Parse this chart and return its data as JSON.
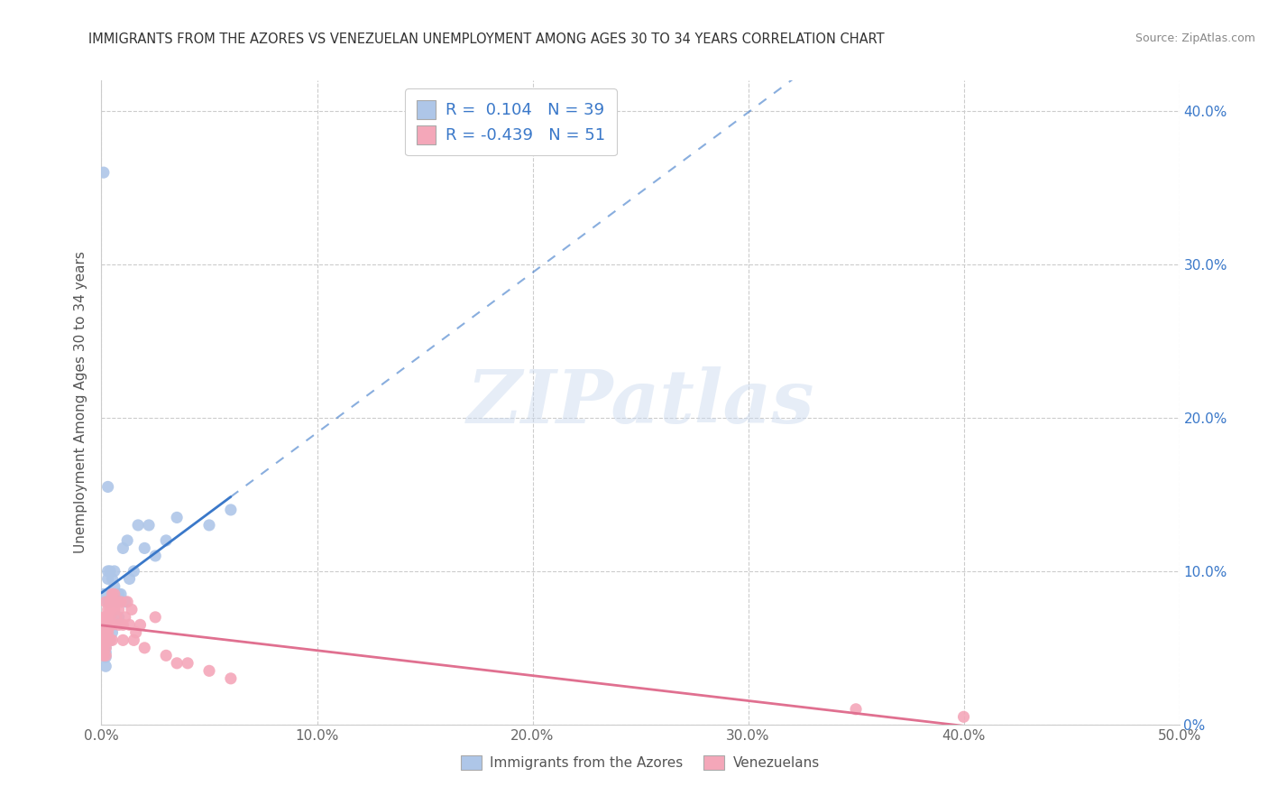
{
  "title": "IMMIGRANTS FROM THE AZORES VS VENEZUELAN UNEMPLOYMENT AMONG AGES 30 TO 34 YEARS CORRELATION CHART",
  "source": "Source: ZipAtlas.com",
  "ylabel": "Unemployment Among Ages 30 to 34 years",
  "xlim": [
    0.0,
    0.5
  ],
  "ylim": [
    0.0,
    0.42
  ],
  "xtick_vals": [
    0.0,
    0.1,
    0.2,
    0.3,
    0.4,
    0.5
  ],
  "xtick_labels": [
    "0.0%",
    "10.0%",
    "20.0%",
    "30.0%",
    "40.0%",
    "50.0%"
  ],
  "ytick_vals": [
    0.0,
    0.1,
    0.2,
    0.3,
    0.4
  ],
  "ytick_labels_right": [
    "0%",
    "10.0%",
    "20.0%",
    "30.0%",
    "40.0%"
  ],
  "grid_color": "#cccccc",
  "watermark_text": "ZIPatlas",
  "azores_color": "#aec6e8",
  "venezuelan_color": "#f4a7b9",
  "azores_line_color": "#3a78c9",
  "venezuelan_line_color": "#e07090",
  "legend_label1": "Immigrants from the Azores",
  "legend_label2": "Venezuelans",
  "legend_text_color": "#3a78c9",
  "azores_x": [
    0.001,
    0.001,
    0.001,
    0.002,
    0.002,
    0.002,
    0.002,
    0.002,
    0.002,
    0.003,
    0.003,
    0.003,
    0.003,
    0.003,
    0.004,
    0.004,
    0.004,
    0.005,
    0.005,
    0.005,
    0.006,
    0.006,
    0.007,
    0.008,
    0.008,
    0.009,
    0.01,
    0.011,
    0.012,
    0.013,
    0.015,
    0.017,
    0.02,
    0.022,
    0.025,
    0.03,
    0.035,
    0.05,
    0.06
  ],
  "azores_y": [
    0.36,
    0.085,
    0.06,
    0.055,
    0.053,
    0.05,
    0.047,
    0.044,
    0.038,
    0.155,
    0.1,
    0.095,
    0.08,
    0.06,
    0.1,
    0.08,
    0.055,
    0.095,
    0.085,
    0.06,
    0.1,
    0.09,
    0.08,
    0.085,
    0.07,
    0.085,
    0.115,
    0.08,
    0.12,
    0.095,
    0.1,
    0.13,
    0.115,
    0.13,
    0.11,
    0.12,
    0.135,
    0.13,
    0.14
  ],
  "venezuelan_x": [
    0.001,
    0.001,
    0.001,
    0.001,
    0.001,
    0.001,
    0.002,
    0.002,
    0.002,
    0.002,
    0.002,
    0.002,
    0.002,
    0.003,
    0.003,
    0.003,
    0.003,
    0.004,
    0.004,
    0.004,
    0.004,
    0.004,
    0.005,
    0.005,
    0.005,
    0.005,
    0.006,
    0.006,
    0.007,
    0.007,
    0.008,
    0.008,
    0.009,
    0.01,
    0.01,
    0.011,
    0.012,
    0.013,
    0.014,
    0.015,
    0.016,
    0.018,
    0.02,
    0.025,
    0.03,
    0.035,
    0.04,
    0.05,
    0.06,
    0.35,
    0.4
  ],
  "venezuelan_y": [
    0.07,
    0.065,
    0.06,
    0.055,
    0.05,
    0.045,
    0.08,
    0.07,
    0.065,
    0.06,
    0.055,
    0.05,
    0.045,
    0.075,
    0.065,
    0.06,
    0.055,
    0.08,
    0.075,
    0.07,
    0.065,
    0.055,
    0.085,
    0.075,
    0.065,
    0.055,
    0.085,
    0.075,
    0.08,
    0.07,
    0.075,
    0.065,
    0.08,
    0.065,
    0.055,
    0.07,
    0.08,
    0.065,
    0.075,
    0.055,
    0.06,
    0.065,
    0.05,
    0.07,
    0.045,
    0.04,
    0.04,
    0.035,
    0.03,
    0.01,
    0.005
  ]
}
